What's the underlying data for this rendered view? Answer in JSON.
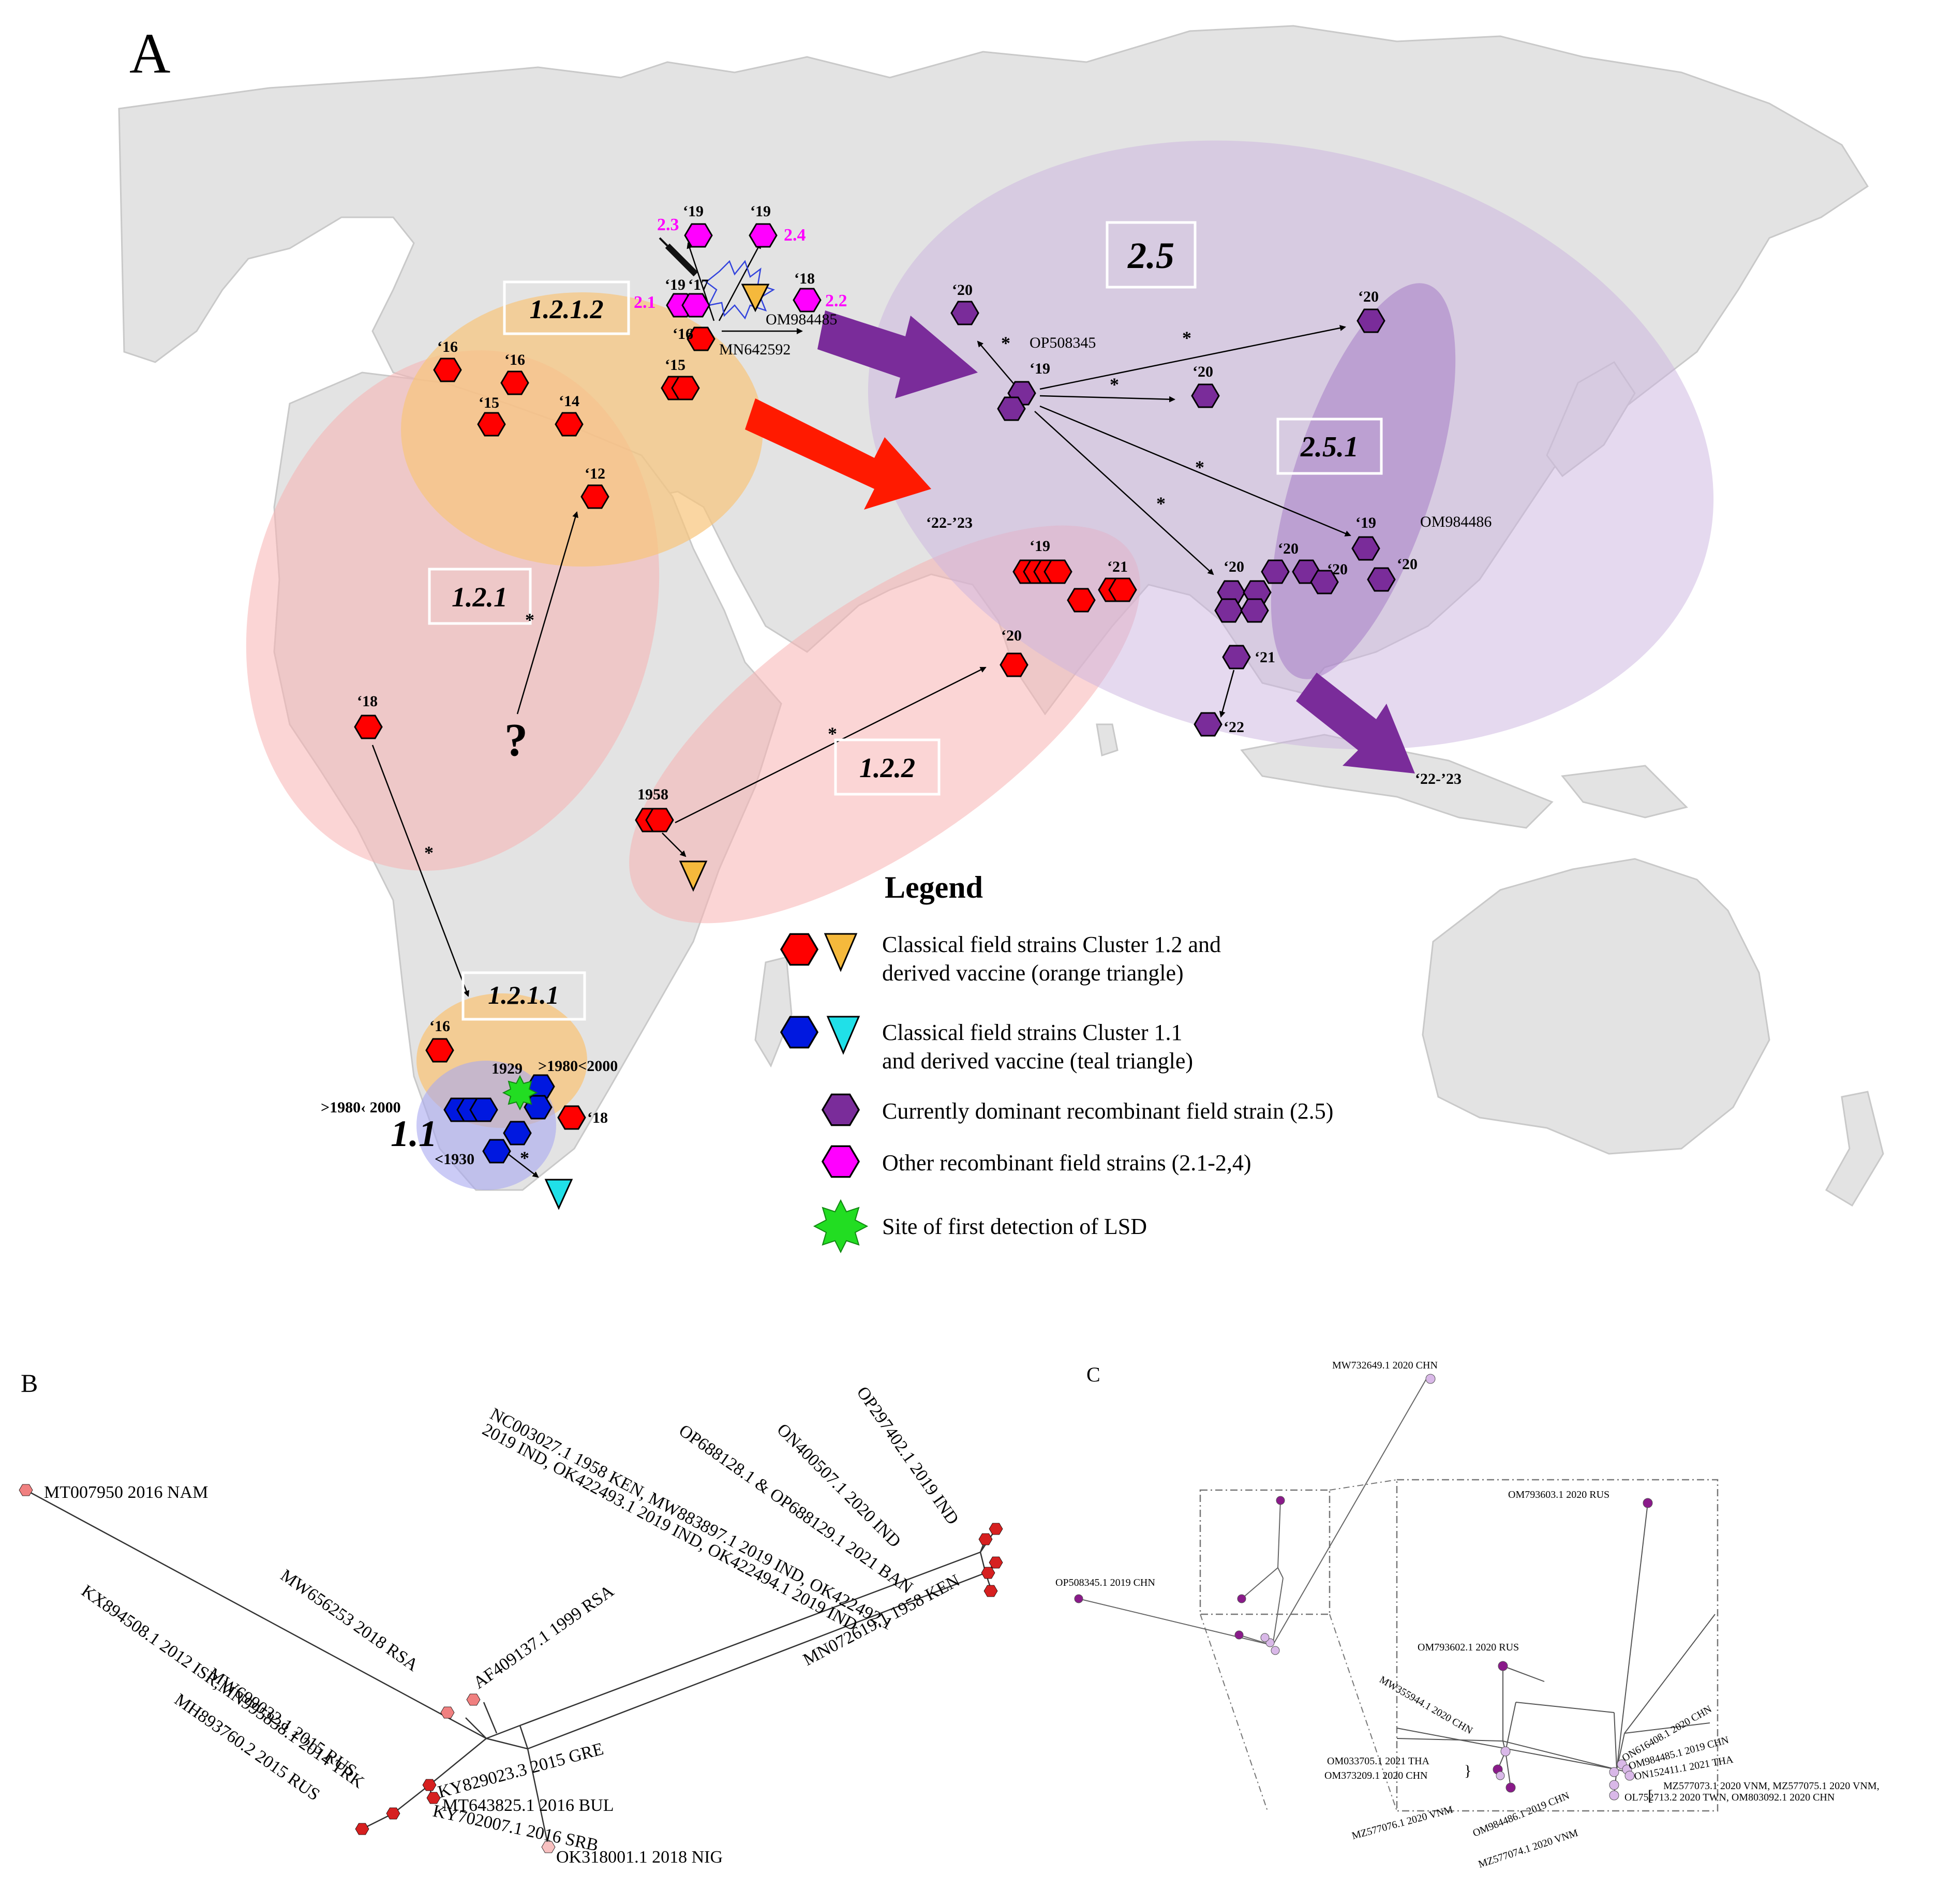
{
  "panel_a": {
    "label": "A",
    "clusters": {
      "c1212": "1.2.1.2",
      "c121": "1.2.1",
      "c122": "1.2.2",
      "c1211": "1.2.1.1",
      "c11": "1.1",
      "c25": "2.5",
      "c251": "2.5.1"
    },
    "recomb_labels": {
      "r21": "2.1",
      "r22": "2.2",
      "r23": "2.3",
      "r24": "2.4"
    },
    "year_labels": {
      "y19a": "‘19",
      "y19b": "‘19",
      "y18a": "‘18",
      "y19c": "‘19",
      "y17": "‘17",
      "y16a": "‘16",
      "y16b": "‘16",
      "y16c": "‘16",
      "y15a": "‘15",
      "y14": "‘14",
      "y15b": "‘15",
      "y12": "‘12",
      "y18b": "‘18",
      "y1958": "1958",
      "y16d": "‘16",
      "y1929": "1929",
      "y8020a": ">1980<2000",
      "y8020b": ">1980‹ 2000",
      "y1930": "<1930",
      "y18c": "‘18",
      "y20a": "‘20",
      "y19d": "‘19",
      "y20b": "‘20",
      "y20c": "‘20",
      "y19e": "‘19",
      "y21a": "‘21",
      "y20d": "‘20",
      "y2223a": "‘22-’23",
      "y20e": "‘20",
      "y20f": "‘20",
      "y20g": "‘20",
      "y19f": "‘19",
      "y20h": "‘20",
      "y21b": "‘21",
      "y22": "‘22",
      "y2223b": "‘22-’23"
    },
    "accessions": {
      "a1": "OM984485",
      "a2": "MN642592",
      "a3": "OP508345",
      "a4": "OM984486"
    },
    "question": "?",
    "colors": {
      "classical_12": "#ff0000",
      "vaccine_12": "#f5b93c",
      "classical_11": "#0018e0",
      "vaccine_11": "#20e0e8",
      "recombinant_25": "#7a2c9a",
      "recombinant_other": "#ff00ff",
      "first_detection": "#22dd22",
      "zone_orange": "#f8c47a",
      "zone_pink": "#f7b3b3",
      "zone_purple": "#cbb3df",
      "zone_blue": "#a9a9f0"
    },
    "legend": {
      "title": "Legend",
      "items": [
        {
          "line1": "Classical field strains Cluster 1.2 and",
          "line2": "derived vaccine (orange triangle)"
        },
        {
          "line1": "Classical field strains Cluster 1.1",
          "line2": "and derived vaccine (teal triangle)"
        },
        {
          "line1": "Currently dominant recombinant field strain (2.5)",
          "line2": ""
        },
        {
          "line1": "Other recombinant field strains (2.1-2,4)",
          "line2": ""
        },
        {
          "line1": "Site of first detection of LSD",
          "line2": ""
        }
      ]
    }
  },
  "panel_b": {
    "label": "B",
    "tips": {
      "t1": "MT007950 2016 NAM",
      "t2": "MW656253 2018 RSA",
      "t3": "AF409137.1 1999 RSA",
      "t4": "KX894508.1 2012 ISR,MN995838.1 2014 TRK",
      "t5": "MW699032.1 2015 RUS",
      "t6": "MH893760.2 2015 RUS",
      "t7": "KY829023.3 2015 GRE",
      "t8": "MT643825.1 2016 BUL",
      "t9": "KY702007.1 2016 SRB",
      "t10": "OK318001.1 2018 NIG",
      "t11": "NC003027.1 1958 KEN, MW883897.1 2019 IND, OK422492.1",
      "t11b": "2019 IND, OK422493.1 2019 IND, OK422494.1 2019 IND",
      "t12": "OP688128.1 & OP688129.1 2021 BAN",
      "t13": "ON400507.1 2020 IND",
      "t14": "OP297402.1 2019 IND",
      "t15": "MN072619.1 1958 KEN"
    }
  },
  "panel_c": {
    "label": "C",
    "tips": {
      "c1": "MW732649.1 2020 CHN",
      "c2": "OP508345.1 2019 CHN",
      "c3": "OM793603.1 2020 RUS",
      "c4": "OM793602.1 2020 RUS",
      "c5": "MW355944.1 2020 CHN",
      "c6": "ON616408.1 2020 CHN",
      "c7": "OM984485.1 2019 CHN",
      "c8": "ON152411.1 2021 THA",
      "c9": "OM033705.1 2021 THA",
      "c10": "OM373209.1 2020 CHN",
      "c11": "MZ577076.1 2020 VNM",
      "c12": "OM984486.1 2019 CHN",
      "c13": "MZ577073.1 2020 VNM, MZ577075.1 2020 VNM,",
      "c14": "OL752713.2 2020 TWN, OM803092.1 2020 CHN",
      "c15": "MZ577074.1 2020 VNM"
    }
  }
}
